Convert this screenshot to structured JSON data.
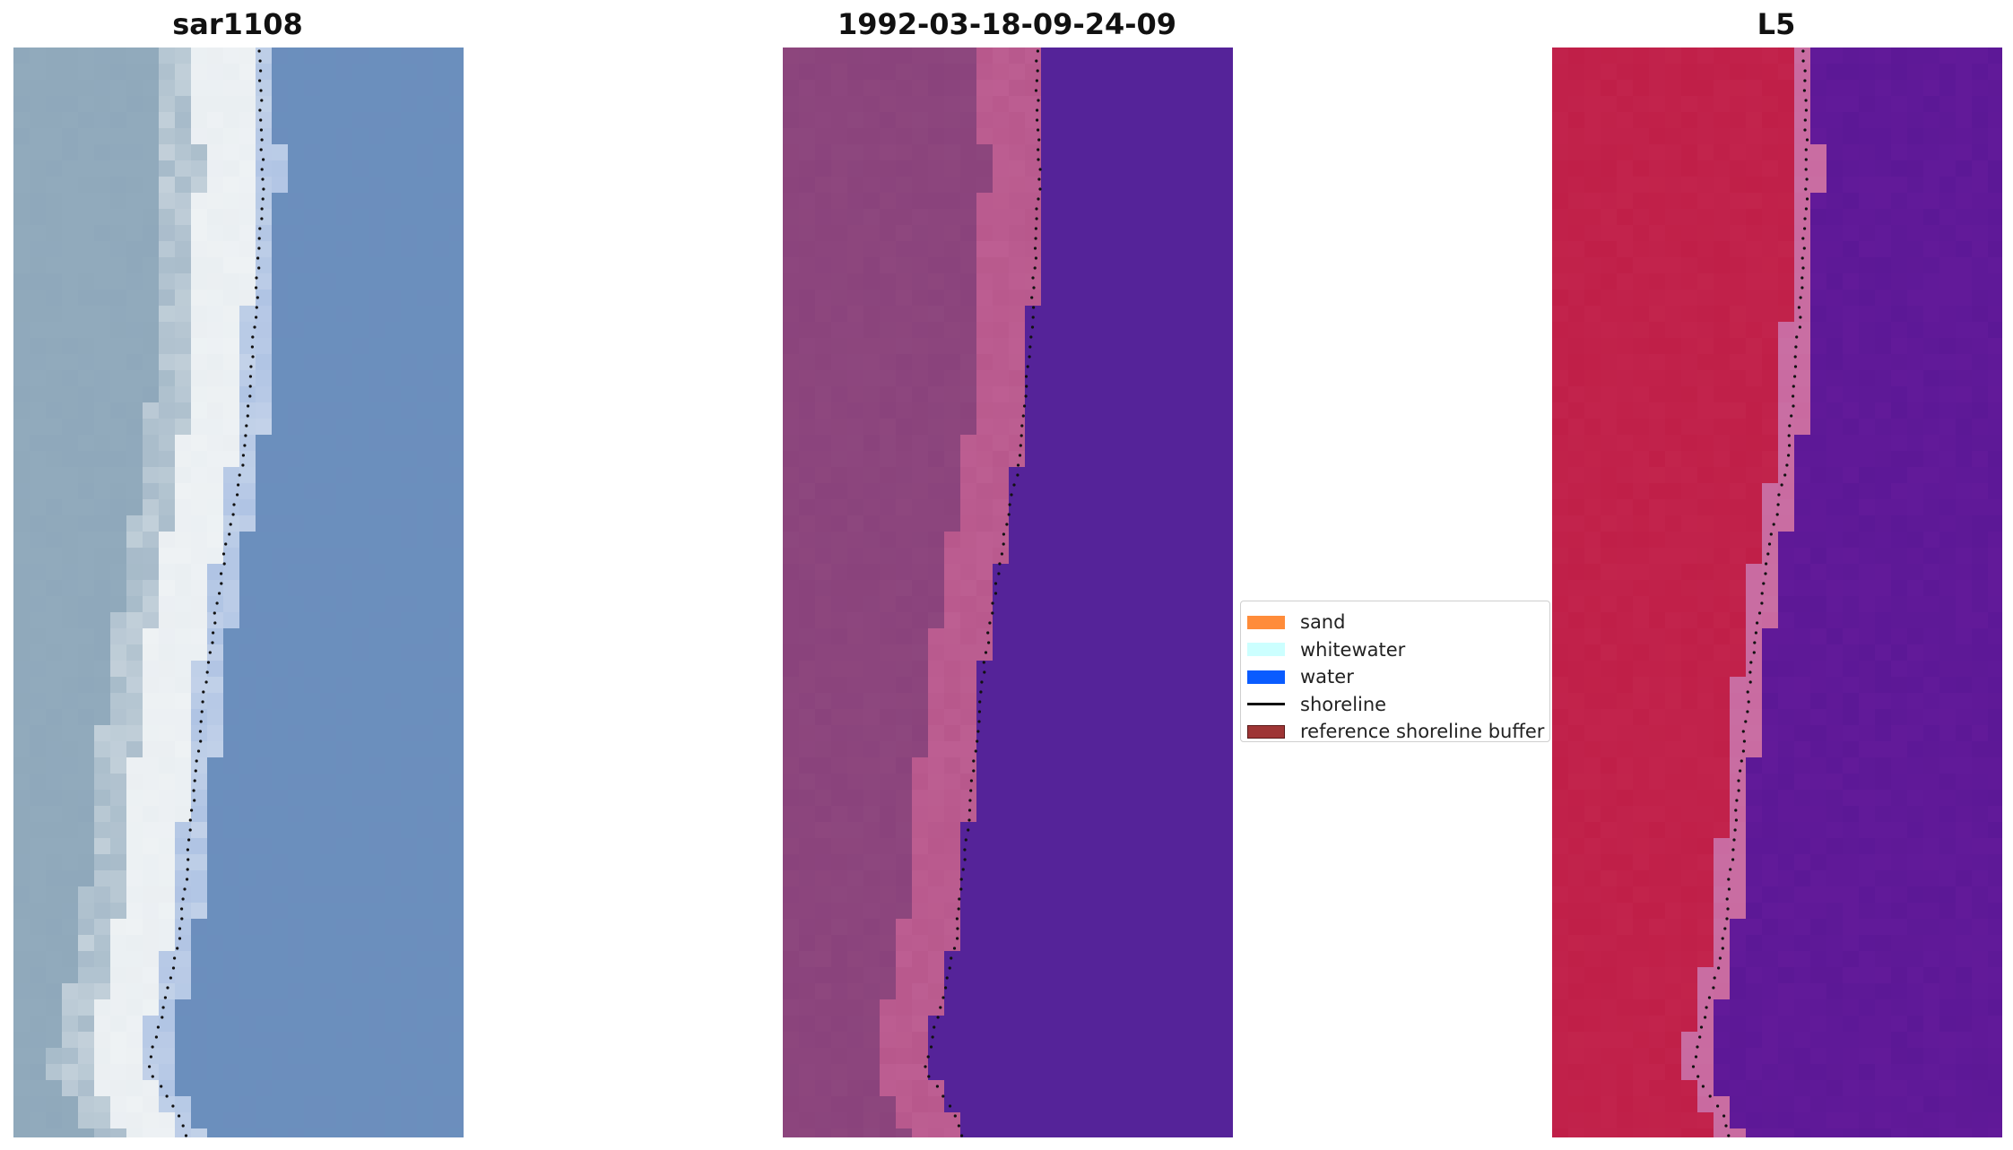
{
  "panels": [
    {
      "title": "sar1108",
      "kind": "rgb"
    },
    {
      "title": "1992-03-18-09-24-09",
      "kind": "classified"
    },
    {
      "title": "L5",
      "kind": "index"
    }
  ],
  "legend": {
    "items": [
      {
        "label": "sand",
        "color": "#ff8c3a",
        "type": "patch"
      },
      {
        "label": "whitewater",
        "color": "#ccffff",
        "type": "patch"
      },
      {
        "label": "water",
        "color": "#0a5cff",
        "type": "patch"
      },
      {
        "label": "shoreline",
        "color": "#111111",
        "type": "line"
      },
      {
        "label": "reference shoreline buffer",
        "color": "#9e3535",
        "type": "patch"
      }
    ]
  },
  "colors": {
    "rgb_land": "#8fa8bb",
    "rgb_water": "#6b8fbd",
    "rgb_surf": "#eef2f4",
    "class_land": "#8a437c",
    "class_buffer": "#b8588c",
    "class_water": "#552399",
    "index_land": "#c01f48",
    "index_buffer": "#c96aa0",
    "index_water": "#5c1896",
    "shoreline_dots": "#111111"
  }
}
